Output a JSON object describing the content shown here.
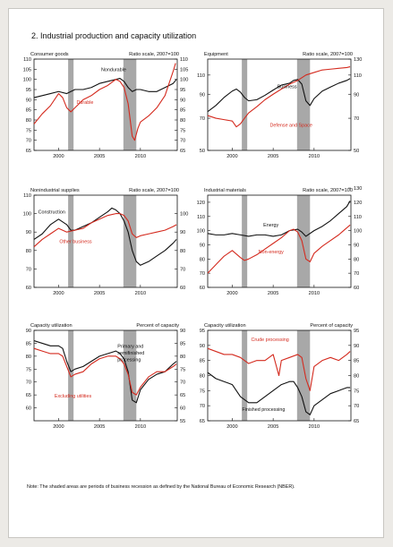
{
  "figure_title": "2. Industrial production and capacity utilization",
  "note": "Note: The shaded areas are periods of business recession as defined by the National Bureau of Economic Research (NBER).",
  "colors": {
    "black_series": "#111111",
    "red_series": "#d42a1e",
    "recession_shade": "#a8a8a8",
    "frame": "#111111"
  },
  "chart_data": [
    {
      "type": "line",
      "title": "Consumer goods",
      "units_label": "Ratio scale, 2007=100",
      "x_range": [
        1997,
        2014.5
      ],
      "x_ticks": [
        2000,
        2005,
        2010
      ],
      "recessions": [
        [
          2001.17,
          2001.83
        ],
        [
          2007.92,
          2009.5
        ]
      ],
      "left_axis": {
        "ticks": [
          65,
          70,
          75,
          80,
          85,
          90,
          95,
          100,
          105,
          110
        ],
        "range": [
          65,
          110
        ]
      },
      "right_axis": {
        "ticks": [
          65,
          70,
          75,
          80,
          85,
          90,
          95,
          100,
          105,
          110
        ],
        "range": [
          65,
          110
        ]
      },
      "series": [
        {
          "name": "Nondurable",
          "color": "black",
          "axis": "left",
          "x": [
            1997,
            1998,
            1999,
            2000,
            2001,
            2002,
            2003,
            2004,
            2005,
            2006,
            2007,
            2007.5,
            2008,
            2008.5,
            2009,
            2009.5,
            2010,
            2011,
            2012,
            2013,
            2014,
            2014.4
          ],
          "y": [
            91,
            92,
            93,
            94,
            93,
            95,
            95,
            96,
            98,
            99,
            100,
            100.5,
            99,
            96,
            94,
            95,
            95,
            94,
            94,
            96,
            98,
            100
          ]
        },
        {
          "name": "Durable",
          "color": "red",
          "axis": "left",
          "x": [
            1997,
            1998,
            1999,
            2000,
            2000.5,
            2001,
            2001.5,
            2002,
            2002.5,
            2003,
            2004,
            2005,
            2006,
            2007,
            2007.5,
            2008,
            2008.5,
            2009,
            2009.3,
            2009.7,
            2010,
            2011,
            2012,
            2013,
            2013.5,
            2014,
            2014.3
          ],
          "y": [
            78,
            83,
            87,
            93,
            91,
            86,
            84,
            86,
            88,
            90,
            92,
            95,
            97,
            100,
            99,
            96,
            88,
            72,
            70,
            76,
            79,
            82,
            86,
            92,
            98,
            104,
            108
          ]
        }
      ],
      "labels": [
        {
          "text": "Nondurable",
          "color": "black",
          "x": 2005.2,
          "y": 104
        },
        {
          "text": "Durable",
          "color": "red",
          "x": 2002.2,
          "y": 88
        }
      ]
    },
    {
      "type": "line",
      "title": "Equipment",
      "units_label": "Ratio scale, 2007=100",
      "x_range": [
        1997,
        2014.5
      ],
      "x_ticks": [
        2000,
        2005,
        2010
      ],
      "recessions": [
        [
          2001.17,
          2001.83
        ],
        [
          2007.92,
          2009.5
        ]
      ],
      "log_scale": true,
      "left_axis": {
        "ticks": [
          50,
          70,
          90,
          110
        ],
        "range": [
          50,
          130
        ]
      },
      "right_axis": {
        "ticks": [
          50,
          70,
          90,
          110,
          130
        ],
        "range": [
          50,
          130
        ]
      },
      "series": [
        {
          "name": "Business",
          "color": "black",
          "axis": "left",
          "x": [
            1997,
            1998,
            1999,
            2000,
            2000.5,
            2001,
            2001.5,
            2002,
            2003,
            2004,
            2005,
            2006,
            2007,
            2007.5,
            2008,
            2008.5,
            2009,
            2009.5,
            2010,
            2011,
            2012,
            2013,
            2014,
            2014.4
          ],
          "y": [
            75,
            80,
            87,
            93,
            95,
            92,
            87,
            84,
            85,
            89,
            94,
            99,
            101,
            104,
            105,
            100,
            84,
            80,
            86,
            93,
            97,
            101,
            104,
            106
          ]
        },
        {
          "name": "Defense and Space",
          "color": "red",
          "axis": "left",
          "x": [
            1997,
            1998,
            1999,
            2000,
            2000.5,
            2001,
            2001.5,
            2002,
            2003,
            2004,
            2005,
            2006,
            2007,
            2008,
            2009,
            2010,
            2011,
            2012,
            2013,
            2014,
            2014.4
          ],
          "y": [
            72,
            70,
            69,
            68,
            64,
            66,
            70,
            74,
            79,
            85,
            90,
            95,
            100,
            104,
            110,
            113,
            116,
            117,
            118,
            119,
            120
          ]
        }
      ],
      "labels": [
        {
          "text": "Business",
          "color": "black",
          "x": 2005.5,
          "y": 96
        },
        {
          "text": "Defense and Space",
          "color": "red",
          "x": 2004.6,
          "y": 64
        }
      ]
    },
    {
      "type": "line",
      "title": "Nonindustrial supplies",
      "units_label": "Ratio scale, 2007=100",
      "x_range": [
        1997,
        2014.5
      ],
      "x_ticks": [
        2000,
        2005,
        2010
      ],
      "recessions": [
        [
          2001.17,
          2001.83
        ],
        [
          2007.92,
          2009.5
        ]
      ],
      "left_axis": {
        "ticks": [
          60,
          70,
          80,
          90,
          100,
          110
        ],
        "range": [
          60,
          110
        ]
      },
      "right_axis": {
        "ticks": [
          60,
          70,
          80,
          90,
          100
        ],
        "range": [
          60,
          110
        ]
      },
      "series": [
        {
          "name": "Construction",
          "color": "black",
          "axis": "left",
          "x": [
            1997,
            1998,
            1999,
            2000,
            2001,
            2001.5,
            2002,
            2003,
            2004,
            2005,
            2006,
            2006.5,
            2007,
            2007.5,
            2008,
            2008.5,
            2009,
            2009.5,
            2010,
            2011,
            2012,
            2013,
            2014,
            2014.4
          ],
          "y": [
            86,
            89,
            94,
            97,
            94,
            91,
            91,
            93,
            95,
            98,
            101,
            103,
            102,
            100,
            96,
            90,
            80,
            74,
            72,
            74,
            77,
            80,
            84,
            86
          ]
        },
        {
          "name": "Other business",
          "color": "red",
          "axis": "left",
          "x": [
            1997,
            1998,
            1999,
            2000,
            2001,
            2002,
            2003,
            2004,
            2005,
            2006,
            2007,
            2007.5,
            2008,
            2008.5,
            2009,
            2009.5,
            2010,
            2011,
            2012,
            2013,
            2014,
            2014.4
          ],
          "y": [
            82,
            86,
            89,
            92,
            90,
            91,
            92,
            95,
            97,
            99,
            100,
            100,
            99,
            96,
            89,
            87,
            88,
            89,
            90,
            91,
            93,
            94
          ]
        }
      ],
      "labels": [
        {
          "text": "Construction",
          "color": "black",
          "x": 1997.5,
          "y": 100
        },
        {
          "text": "Other business",
          "color": "red",
          "x": 2000.1,
          "y": 84
        }
      ]
    },
    {
      "type": "line",
      "title": "Industrial materials",
      "units_label": "Ratio scale, 2007=100",
      "x_range": [
        1997,
        2014.5
      ],
      "x_ticks": [
        2000,
        2005,
        2010
      ],
      "recessions": [
        [
          2001.17,
          2001.83
        ],
        [
          2007.92,
          2009.5
        ]
      ],
      "left_axis": {
        "ticks": [
          60,
          70,
          80,
          90,
          100,
          110,
          120
        ],
        "range": [
          60,
          125
        ]
      },
      "right_axis": {
        "ticks": [
          60,
          70,
          80,
          90,
          100,
          110,
          120,
          130
        ],
        "range": [
          60,
          125
        ]
      },
      "series": [
        {
          "name": "Energy",
          "color": "black",
          "axis": "left",
          "x": [
            1997,
            1998,
            1999,
            2000,
            2001,
            2002,
            2003,
            2004,
            2005,
            2006,
            2007,
            2008,
            2008.5,
            2009,
            2010,
            2011,
            2012,
            2013,
            2014,
            2014.4
          ],
          "y": [
            98,
            97,
            97,
            98,
            97,
            96,
            97,
            97,
            96,
            97,
            100,
            101,
            99,
            96,
            100,
            103,
            107,
            112,
            117,
            121
          ]
        },
        {
          "name": "Non-energy",
          "color": "red",
          "axis": "left",
          "x": [
            1997,
            1998,
            1999,
            2000,
            2001,
            2001.5,
            2002,
            2003,
            2004,
            2005,
            2006,
            2007,
            2007.5,
            2008,
            2008.5,
            2009,
            2009.5,
            2010,
            2011,
            2012,
            2013,
            2014,
            2014.4
          ],
          "y": [
            70,
            76,
            82,
            86,
            81,
            79,
            80,
            83,
            87,
            91,
            95,
            100,
            101,
            99,
            93,
            80,
            78,
            84,
            89,
            93,
            97,
            102,
            104
          ]
        }
      ],
      "labels": [
        {
          "text": "Energy",
          "color": "black",
          "x": 2003.8,
          "y": 103
        },
        {
          "text": "Non-energy",
          "color": "red",
          "x": 2003.2,
          "y": 84
        }
      ]
    },
    {
      "type": "line",
      "title": "Capacity utilization",
      "units_label": "Percent of capacity",
      "x_range": [
        1997,
        2014.5
      ],
      "x_ticks": [
        2000,
        2005,
        2010
      ],
      "recessions": [
        [
          2001.17,
          2001.83
        ],
        [
          2007.92,
          2009.5
        ]
      ],
      "left_axis": {
        "ticks": [
          60,
          65,
          70,
          75,
          80,
          85,
          90
        ],
        "range": [
          55,
          90
        ]
      },
      "right_axis": {
        "ticks": [
          55,
          60,
          65,
          70,
          75,
          80,
          85,
          90
        ],
        "range": [
          55,
          90
        ]
      },
      "series": [
        {
          "name": "Primary and semifinished processing",
          "color": "black",
          "axis": "left",
          "x": [
            1997,
            1998,
            1999,
            2000,
            2000.5,
            2001,
            2001.5,
            2002,
            2003,
            2004,
            2005,
            2006,
            2007,
            2007.5,
            2008,
            2008.5,
            2009,
            2009.5,
            2010,
            2011,
            2012,
            2013,
            2014,
            2014.4
          ],
          "y": [
            86,
            85,
            84,
            84,
            83,
            78,
            74,
            75,
            76,
            78,
            80,
            81,
            82,
            81,
            79,
            74,
            63,
            62,
            67,
            71,
            73,
            74,
            77,
            78
          ]
        },
        {
          "name": "Excluding utilities",
          "color": "red",
          "axis": "left",
          "x": [
            1997,
            1998,
            1999,
            2000,
            2000.5,
            2001,
            2001.5,
            2002,
            2003,
            2004,
            2005,
            2006,
            2007,
            2007.5,
            2008,
            2008.5,
            2009,
            2009.5,
            2010,
            2011,
            2012,
            2013,
            2014,
            2014.4
          ],
          "y": [
            83,
            82,
            81,
            81,
            80,
            76,
            72,
            73,
            74,
            77,
            79,
            80,
            80,
            79,
            77,
            73,
            66,
            65,
            68,
            72,
            74,
            74,
            76,
            77
          ]
        }
      ],
      "labels": [
        {
          "text": "Primary and",
          "color": "black",
          "x": 2007.2,
          "y": 83.2
        },
        {
          "text": "semifinished",
          "color": "black",
          "x": 2007.2,
          "y": 80.6
        },
        {
          "text": "processing",
          "color": "black",
          "x": 2007.2,
          "y": 78
        },
        {
          "text": "Excluding utilities",
          "color": "red",
          "x": 1999.5,
          "y": 64
        }
      ]
    },
    {
      "type": "line",
      "title": "Capacity utilization",
      "units_label": "Percent of capacity",
      "x_range": [
        1997,
        2014.5
      ],
      "x_ticks": [
        2000,
        2005,
        2010
      ],
      "recessions": [
        [
          2001.17,
          2001.83
        ],
        [
          2007.92,
          2009.5
        ]
      ],
      "left_axis": {
        "ticks": [
          65,
          70,
          75,
          80,
          85,
          90,
          95
        ],
        "range": [
          65,
          95
        ]
      },
      "right_axis": {
        "ticks": [
          65,
          70,
          75,
          80,
          85,
          90,
          95
        ],
        "range": [
          65,
          95
        ]
      },
      "series": [
        {
          "name": "Crude processing",
          "color": "red",
          "axis": "left",
          "x": [
            1997,
            1998,
            1999,
            2000,
            2001,
            2002,
            2003,
            2004,
            2005,
            2005.7,
            2006,
            2007,
            2008,
            2008.5,
            2009,
            2009.5,
            2010,
            2011,
            2012,
            2013,
            2014,
            2014.4
          ],
          "y": [
            89,
            88,
            87,
            87,
            86,
            84,
            85,
            85,
            87,
            80,
            85,
            86,
            87,
            86,
            79,
            75,
            83,
            85,
            86,
            85,
            87,
            88
          ]
        },
        {
          "name": "Finished processing",
          "color": "black",
          "axis": "left",
          "x": [
            1997,
            1998,
            1999,
            2000,
            2001,
            2002,
            2003,
            2004,
            2005,
            2006,
            2007,
            2007.5,
            2008,
            2008.5,
            2009,
            2009.5,
            2010,
            2011,
            2012,
            2013,
            2014,
            2014.4
          ],
          "y": [
            81,
            79,
            78,
            77,
            73,
            71,
            71,
            73,
            75,
            77,
            78,
            78,
            76,
            73,
            68,
            67,
            70,
            72,
            74,
            75,
            76,
            76
          ]
        }
      ],
      "labels": [
        {
          "text": "Crude processing",
          "color": "red",
          "x": 2002.3,
          "y": 91.5
        },
        {
          "text": "Finished processing",
          "color": "black",
          "x": 2001.2,
          "y": 68.2
        }
      ]
    }
  ]
}
